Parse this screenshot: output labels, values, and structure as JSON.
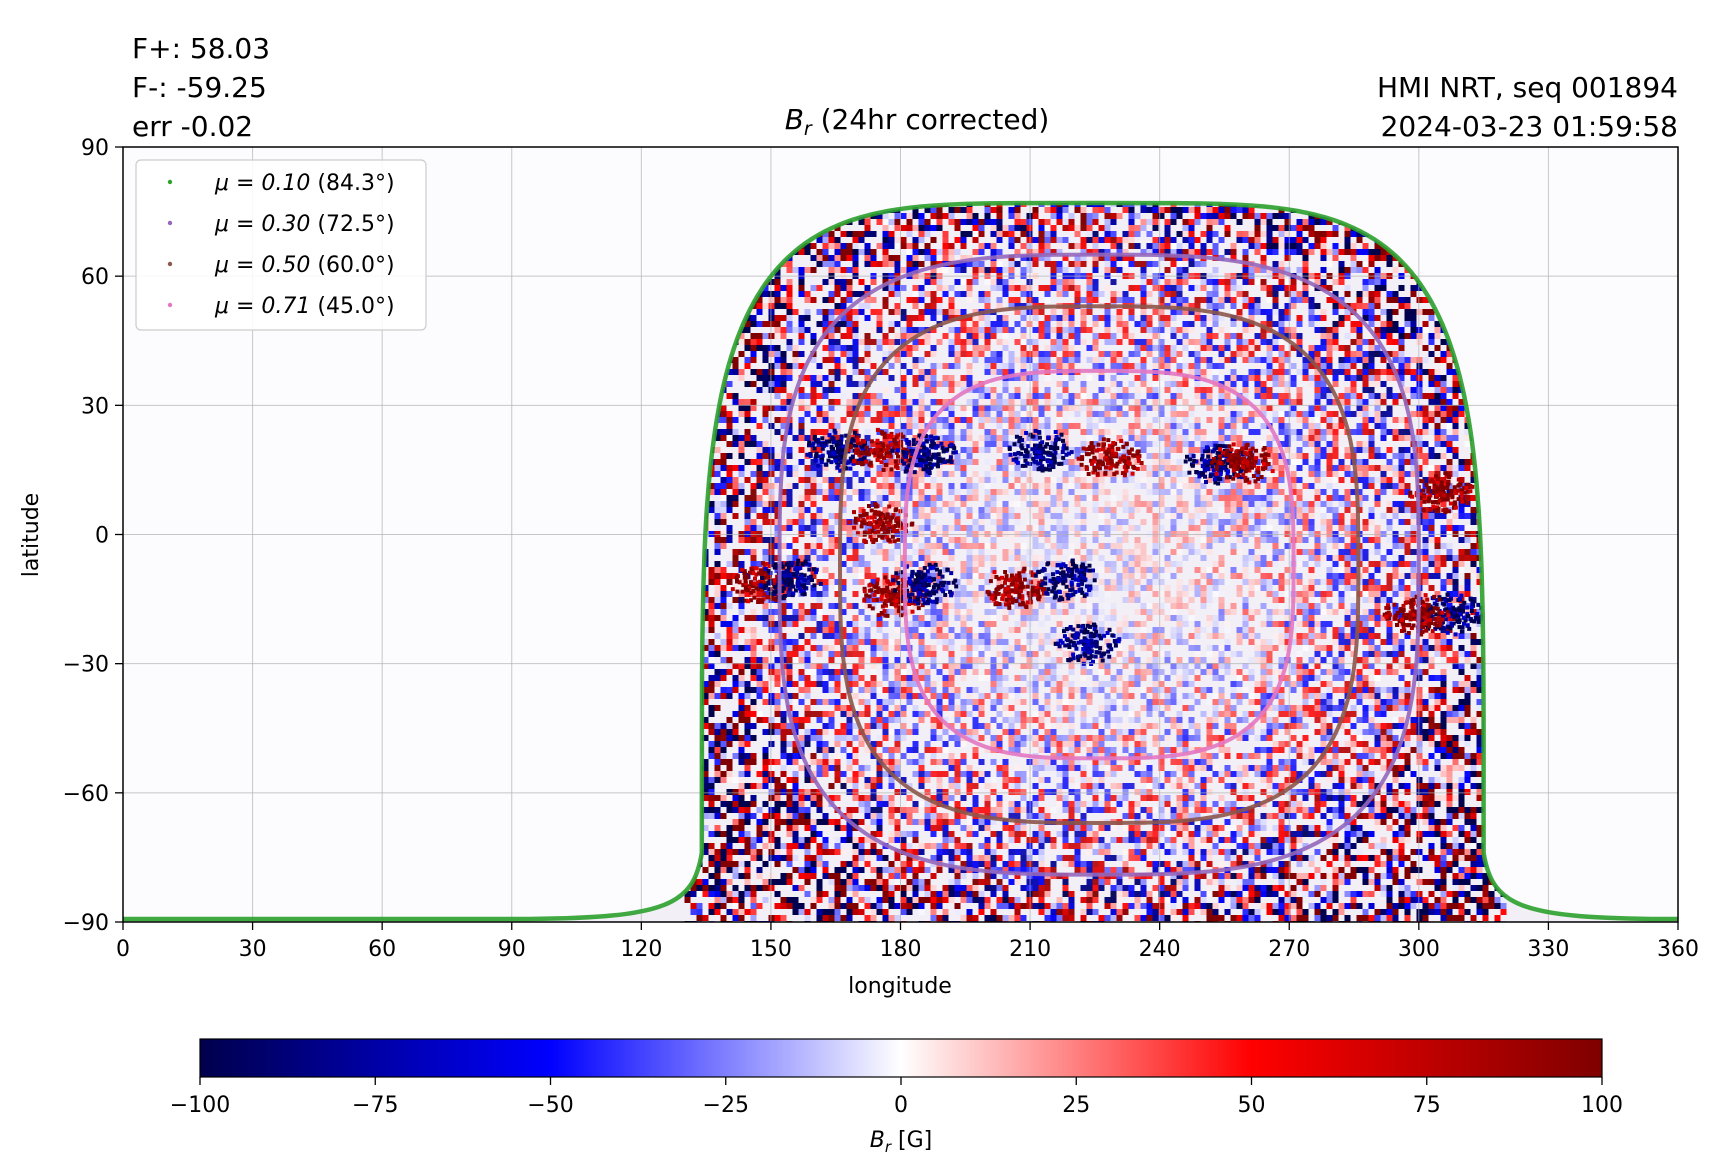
{
  "chart_data": {
    "type": "heatmap",
    "title": "B_r (24hr corrected)",
    "title_main": "B",
    "title_sub": "r",
    "title_rest": " (24hr corrected)",
    "annotations_left": [
      "F+: 58.03",
      "F-: -59.25",
      "err -0.02"
    ],
    "annotations_right": [
      "HMI NRT, seq 001894",
      "2024-03-23 01:59:58"
    ],
    "xlabel": "longitude",
    "ylabel": "latitude",
    "xlim": [
      0,
      360
    ],
    "ylim": [
      -90,
      90
    ],
    "xticks": [
      0,
      30,
      60,
      90,
      120,
      150,
      180,
      210,
      240,
      270,
      300,
      330,
      360
    ],
    "yticks": [
      -90,
      -60,
      -30,
      0,
      30,
      60,
      90
    ],
    "ytick_labels": [
      "−90",
      "−60",
      "−30",
      "0",
      "30",
      "60",
      "90"
    ],
    "grid": true,
    "legend_position": "top-left",
    "field_center": {
      "longitude": 226,
      "latitude": -7
    },
    "contours": [
      {
        "name": "μ = 0.10 (84.3°)",
        "label_mu": "μ = 0.10",
        "label_deg": "(84.3°)",
        "color": "#2ca02c",
        "lon_min": 134,
        "lon_max": 315,
        "lat_top": 77,
        "lat_bottom": -90,
        "lon_bottom_min": 0,
        "lon_bottom_max": 360
      },
      {
        "name": "μ = 0.30 (72.5°)",
        "label_mu": "μ = 0.30",
        "label_deg": "(72.5°)",
        "color": "#9467bd",
        "lon_min": 152,
        "lon_max": 300,
        "lat_top": 65,
        "lat_bottom": -79
      },
      {
        "name": "μ = 0.50 (60.0°)",
        "label_mu": "μ = 0.50",
        "label_deg": "(60.0°)",
        "color": "#8c564b",
        "lon_min": 166,
        "lon_max": 286,
        "lat_top": 53,
        "lat_bottom": -67
      },
      {
        "name": "μ = 0.71 (45.0°)",
        "label_mu": "μ = 0.71",
        "label_deg": "(45.0°)",
        "color": "#e377c2",
        "lon_min": 181,
        "lon_max": 271,
        "lat_top": 38,
        "lat_bottom": -52
      }
    ],
    "active_regions": [
      {
        "lon": 212,
        "lat": 20,
        "polarity": -1
      },
      {
        "lon": 228,
        "lat": 18,
        "polarity": 1
      },
      {
        "lon": 165,
        "lat": 20,
        "polarity": -1
      },
      {
        "lon": 175,
        "lat": 20,
        "polarity": 1
      },
      {
        "lon": 185,
        "lat": 19,
        "polarity": -1
      },
      {
        "lon": 206,
        "lat": -12,
        "polarity": 1
      },
      {
        "lon": 218,
        "lat": -10,
        "polarity": -1
      },
      {
        "lon": 305,
        "lat": 10,
        "polarity": 1
      },
      {
        "lon": 307,
        "lat": -18,
        "polarity": -1
      },
      {
        "lon": 299,
        "lat": -18,
        "polarity": 1
      },
      {
        "lon": 148,
        "lat": -11,
        "polarity": 1
      },
      {
        "lon": 154,
        "lat": -10,
        "polarity": -1
      },
      {
        "lon": 178,
        "lat": -14,
        "polarity": 1
      },
      {
        "lon": 185,
        "lat": -11,
        "polarity": -1
      },
      {
        "lon": 223,
        "lat": -25,
        "polarity": -1
      },
      {
        "lon": 175,
        "lat": 3,
        "polarity": 1
      },
      {
        "lon": 253,
        "lat": 17,
        "polarity": -1
      },
      {
        "lon": 259,
        "lat": 17,
        "polarity": 1
      }
    ],
    "colorbar": {
      "label": "B_r [G]",
      "label_main": "B",
      "label_sub": "r",
      "label_rest": " [G]",
      "range": [
        -100,
        100
      ],
      "ticks": [
        -100,
        -75,
        -50,
        -25,
        0,
        25,
        50,
        75,
        100
      ],
      "tick_labels": [
        "−100",
        "−75",
        "−50",
        "−25",
        "0",
        "25",
        "50",
        "75",
        "100"
      ],
      "colormap": "seismic",
      "colors": [
        "#00004c",
        "#0000ff",
        "#ffffff",
        "#ff0000",
        "#7f0000"
      ]
    }
  }
}
